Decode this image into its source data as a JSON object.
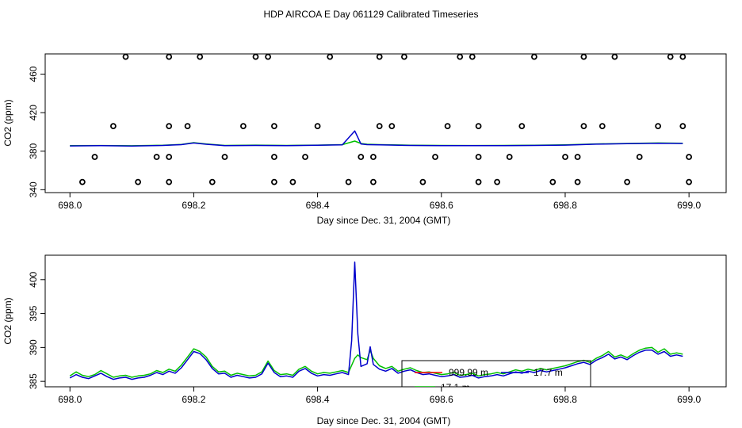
{
  "title": "HDP AIRCOA E  Day 061129  Calibrated Timeseries",
  "colors": {
    "green": "#00c000",
    "blue": "#0000cc",
    "red": "#ff0000",
    "axis": "#000000"
  },
  "chart_data": [
    {
      "type": "line",
      "xlabel": "Day since Dec. 31, 2004 (GMT)",
      "ylabel": "CO2 (ppm)",
      "xlim": [
        697.96,
        699.06
      ],
      "ylim": [
        337,
        481
      ],
      "xticks": [
        698.0,
        698.2,
        698.4,
        698.6,
        698.8,
        699.0
      ],
      "xtick_labels": [
        "698.0",
        "698.2",
        "698.4",
        "698.6",
        "698.8",
        "699.0"
      ],
      "yticks": [
        340,
        380,
        420,
        460
      ],
      "ytick_labels": [
        "340",
        "380",
        "420",
        "460"
      ],
      "grid": false,
      "markers": {
        "style": "open-circle",
        "points": [
          [
            698.09,
            478
          ],
          [
            698.16,
            478
          ],
          [
            698.21,
            478
          ],
          [
            698.3,
            478
          ],
          [
            698.32,
            478
          ],
          [
            698.42,
            478
          ],
          [
            698.5,
            478
          ],
          [
            698.54,
            478
          ],
          [
            698.63,
            478
          ],
          [
            698.65,
            478
          ],
          [
            698.75,
            478
          ],
          [
            698.83,
            478
          ],
          [
            698.88,
            478
          ],
          [
            698.97,
            478
          ],
          [
            698.99,
            478
          ],
          [
            698.07,
            406
          ],
          [
            698.16,
            406
          ],
          [
            698.19,
            406
          ],
          [
            698.28,
            406
          ],
          [
            698.33,
            406
          ],
          [
            698.4,
            406
          ],
          [
            698.5,
            406
          ],
          [
            698.52,
            406
          ],
          [
            698.61,
            406
          ],
          [
            698.66,
            406
          ],
          [
            698.73,
            406
          ],
          [
            698.83,
            406
          ],
          [
            698.86,
            406
          ],
          [
            698.95,
            406
          ],
          [
            698.99,
            406
          ],
          [
            698.04,
            374
          ],
          [
            698.14,
            374
          ],
          [
            698.16,
            374
          ],
          [
            698.25,
            374
          ],
          [
            698.33,
            374
          ],
          [
            698.38,
            374
          ],
          [
            698.47,
            374
          ],
          [
            698.49,
            374
          ],
          [
            698.59,
            374
          ],
          [
            698.66,
            374
          ],
          [
            698.71,
            374
          ],
          [
            698.8,
            374
          ],
          [
            698.82,
            374
          ],
          [
            698.92,
            374
          ],
          [
            699.0,
            374
          ],
          [
            698.02,
            348
          ],
          [
            698.11,
            348
          ],
          [
            698.16,
            348
          ],
          [
            698.23,
            348
          ],
          [
            698.33,
            348
          ],
          [
            698.36,
            348
          ],
          [
            698.45,
            348
          ],
          [
            698.49,
            348
          ],
          [
            698.57,
            348
          ],
          [
            698.66,
            348
          ],
          [
            698.69,
            348
          ],
          [
            698.78,
            348
          ],
          [
            698.82,
            348
          ],
          [
            698.9,
            348
          ],
          [
            699.0,
            348
          ]
        ]
      },
      "series": [
        {
          "color": "green",
          "x": [
            698.0,
            698.05,
            698.1,
            698.15,
            698.18,
            698.2,
            698.22,
            698.25,
            698.3,
            698.35,
            698.4,
            698.44,
            698.46,
            698.47,
            698.48,
            698.5,
            698.55,
            698.6,
            698.65,
            698.7,
            698.75,
            698.8,
            698.85,
            698.9,
            698.95,
            698.99
          ],
          "y": [
            385.8,
            385.9,
            385.6,
            386.2,
            387.0,
            388.8,
            387.5,
            386.0,
            386.3,
            386.0,
            386.3,
            386.8,
            390.5,
            388.0,
            387.2,
            386.8,
            386.2,
            386.0,
            385.9,
            386.0,
            386.2,
            386.5,
            387.5,
            388.0,
            388.5,
            388.3
          ]
        },
        {
          "color": "blue",
          "x": [
            698.0,
            698.05,
            698.1,
            698.15,
            698.18,
            698.2,
            698.22,
            698.25,
            698.3,
            698.35,
            698.4,
            698.44,
            698.46,
            698.47,
            698.48,
            698.5,
            698.55,
            698.6,
            698.65,
            698.7,
            698.75,
            698.8,
            698.85,
            698.9,
            698.95,
            698.99
          ],
          "y": [
            385.5,
            385.7,
            385.4,
            386.0,
            386.8,
            388.5,
            387.2,
            385.8,
            386.0,
            385.8,
            386.1,
            386.5,
            401.0,
            387.5,
            386.8,
            386.5,
            386.0,
            385.8,
            385.7,
            385.8,
            386.0,
            386.3,
            387.3,
            387.8,
            388.3,
            388.0
          ]
        }
      ]
    },
    {
      "type": "line",
      "xlabel": "Day since Dec. 31, 2004 (GMT)",
      "ylabel": "CO2 (ppm)",
      "xlim": [
        697.96,
        699.06
      ],
      "ylim": [
        384.2,
        403.6
      ],
      "xticks": [
        698.0,
        698.2,
        698.4,
        698.6,
        698.8,
        699.0
      ],
      "xtick_labels": [
        "698.0",
        "698.2",
        "698.4",
        "698.6",
        "698.8",
        "699.0"
      ],
      "yticks": [
        385,
        390,
        395,
        400
      ],
      "ytick_labels": [
        "385",
        "390",
        "395",
        "400"
      ],
      "grid": false,
      "legend": {
        "placement": "bottom-center",
        "entries": [
          {
            "label": "999.99 m",
            "color": "red"
          },
          {
            "label": "17.7 m",
            "color": "blue"
          },
          {
            "label": "17.1 m",
            "color": "green"
          }
        ]
      },
      "series": [
        {
          "color": "green",
          "x": [
            698.0,
            698.01,
            698.02,
            698.03,
            698.04,
            698.05,
            698.06,
            698.07,
            698.08,
            698.09,
            698.1,
            698.11,
            698.12,
            698.13,
            698.14,
            698.15,
            698.16,
            698.17,
            698.18,
            698.19,
            698.2,
            698.21,
            698.22,
            698.23,
            698.24,
            698.25,
            698.26,
            698.27,
            698.28,
            698.29,
            698.3,
            698.31,
            698.32,
            698.33,
            698.34,
            698.35,
            698.36,
            698.37,
            698.38,
            698.39,
            698.4,
            698.41,
            698.42,
            698.43,
            698.44,
            698.45,
            698.46,
            698.465,
            698.47,
            698.48,
            698.485,
            698.49,
            698.5,
            698.51,
            698.52,
            698.53,
            698.54,
            698.55,
            698.56,
            698.57,
            698.58,
            698.59,
            698.6,
            698.61,
            698.62,
            698.63,
            698.64,
            698.65,
            698.66,
            698.67,
            698.68,
            698.69,
            698.7,
            698.71,
            698.72,
            698.73,
            698.74,
            698.75,
            698.76,
            698.77,
            698.78,
            698.79,
            698.8,
            698.81,
            698.82,
            698.83,
            698.84,
            698.85,
            698.86,
            698.87,
            698.88,
            698.89,
            698.9,
            698.91,
            698.92,
            698.93,
            698.94,
            698.95,
            698.96,
            698.97,
            698.98,
            698.99
          ],
          "y": [
            385.8,
            386.4,
            385.9,
            385.7,
            386.0,
            386.6,
            386.1,
            385.6,
            385.8,
            385.9,
            385.6,
            385.8,
            385.9,
            386.1,
            386.6,
            386.3,
            386.8,
            386.5,
            387.4,
            388.6,
            389.8,
            389.4,
            388.6,
            387.2,
            386.4,
            386.5,
            385.9,
            386.2,
            386.0,
            385.8,
            385.9,
            386.4,
            388.0,
            386.6,
            386.0,
            386.1,
            385.9,
            386.8,
            387.2,
            386.5,
            386.1,
            386.3,
            386.2,
            386.4,
            386.6,
            386.3,
            388.4,
            388.9,
            388.5,
            388.2,
            389.6,
            388.4,
            387.3,
            386.9,
            387.2,
            386.5,
            386.8,
            387.0,
            386.6,
            386.3,
            386.4,
            386.2,
            386.0,
            386.1,
            386.3,
            385.9,
            386.0,
            386.2,
            385.8,
            386.0,
            386.1,
            386.3,
            386.1,
            386.4,
            386.7,
            386.5,
            386.8,
            386.6,
            386.9,
            386.7,
            386.9,
            387.1,
            387.3,
            387.6,
            387.9,
            388.1,
            387.8,
            388.4,
            388.8,
            389.4,
            388.6,
            388.9,
            388.5,
            389.1,
            389.6,
            389.9,
            390.0,
            389.3,
            389.8,
            389.0,
            389.2,
            389.0
          ]
        },
        {
          "color": "blue",
          "x": [
            698.0,
            698.01,
            698.02,
            698.03,
            698.04,
            698.05,
            698.06,
            698.07,
            698.08,
            698.09,
            698.1,
            698.11,
            698.12,
            698.13,
            698.14,
            698.15,
            698.16,
            698.17,
            698.18,
            698.19,
            698.2,
            698.21,
            698.22,
            698.23,
            698.24,
            698.25,
            698.26,
            698.27,
            698.28,
            698.29,
            698.3,
            698.31,
            698.32,
            698.33,
            698.34,
            698.35,
            698.36,
            698.37,
            698.38,
            698.39,
            698.4,
            698.41,
            698.42,
            698.43,
            698.44,
            698.45,
            698.455,
            698.46,
            698.465,
            698.47,
            698.48,
            698.485,
            698.49,
            698.5,
            698.51,
            698.52,
            698.53,
            698.54,
            698.55,
            698.56,
            698.57,
            698.58,
            698.59,
            698.6,
            698.61,
            698.62,
            698.63,
            698.64,
            698.65,
            698.66,
            698.67,
            698.68,
            698.69,
            698.7,
            698.71,
            698.72,
            698.73,
            698.74,
            698.75,
            698.76,
            698.77,
            698.78,
            698.79,
            698.8,
            698.81,
            698.82,
            698.83,
            698.84,
            698.85,
            698.86,
            698.87,
            698.88,
            698.89,
            698.9,
            698.91,
            698.92,
            698.93,
            698.94,
            698.95,
            698.96,
            698.97,
            698.98,
            698.99
          ],
          "y": [
            385.5,
            386.0,
            385.6,
            385.4,
            385.8,
            386.2,
            385.7,
            385.3,
            385.5,
            385.6,
            385.3,
            385.5,
            385.6,
            385.9,
            386.3,
            386.0,
            386.5,
            386.2,
            387.0,
            388.2,
            389.4,
            389.1,
            388.2,
            386.9,
            386.1,
            386.2,
            385.6,
            385.9,
            385.7,
            385.5,
            385.6,
            386.1,
            387.7,
            386.3,
            385.7,
            385.8,
            385.6,
            386.5,
            386.9,
            386.2,
            385.8,
            386.0,
            385.9,
            386.1,
            386.3,
            386.0,
            391.0,
            402.6,
            392.0,
            387.2,
            387.6,
            390.1,
            387.5,
            386.8,
            386.5,
            386.9,
            386.2,
            386.5,
            386.7,
            386.3,
            386.0,
            386.1,
            385.9,
            385.7,
            385.8,
            386.0,
            385.6,
            385.7,
            385.9,
            385.5,
            385.7,
            385.8,
            386.0,
            385.8,
            386.1,
            386.4,
            386.2,
            386.5,
            386.3,
            386.6,
            386.4,
            386.6,
            386.8,
            387.0,
            387.3,
            387.6,
            387.8,
            387.5,
            388.1,
            388.5,
            389.0,
            388.3,
            388.6,
            388.2,
            388.8,
            389.3,
            389.6,
            389.6,
            389.0,
            389.4,
            388.7,
            388.9,
            388.7
          ]
        }
      ]
    }
  ]
}
